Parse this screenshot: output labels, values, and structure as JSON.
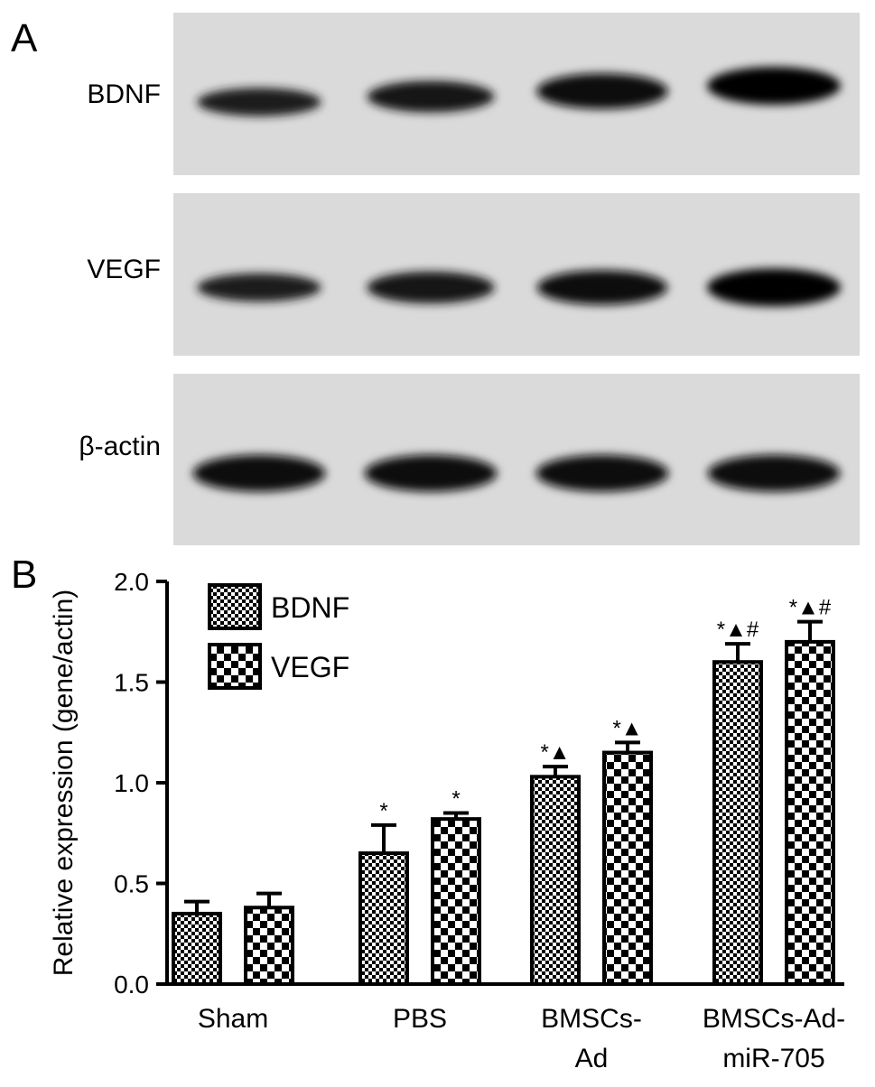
{
  "panels": {
    "a": "A",
    "b": "B"
  },
  "blots": [
    {
      "label": "BDNF",
      "intensity": [
        0.55,
        0.7,
        0.9,
        1.0
      ]
    },
    {
      "label": "VEGF",
      "intensity": [
        0.55,
        0.72,
        0.85,
        1.0
      ]
    },
    {
      "label": "β-actin",
      "intensity": [
        0.95,
        0.95,
        0.95,
        0.95
      ]
    }
  ],
  "chart_data": {
    "type": "bar",
    "ylabel": "Relative expression (gene/actin)",
    "xlabel": "",
    "ylim": [
      0.0,
      2.0
    ],
    "yticks": [
      "0.0",
      "0.5",
      "1.0",
      "1.5",
      "2.0"
    ],
    "categories": [
      [
        "Sham"
      ],
      [
        "PBS"
      ],
      [
        "BMSCs-",
        "Ad"
      ],
      [
        "BMSCs-Ad-",
        "miR-705"
      ]
    ],
    "series": [
      {
        "name": "BDNF",
        "values": [
          0.35,
          0.65,
          1.03,
          1.6
        ],
        "errors": [
          0.06,
          0.14,
          0.05,
          0.09
        ],
        "annotations": [
          "",
          "*",
          "*▲",
          "*▲#"
        ]
      },
      {
        "name": "VEGF",
        "values": [
          0.38,
          0.82,
          1.15,
          1.7
        ],
        "errors": [
          0.07,
          0.03,
          0.05,
          0.1
        ],
        "annotations": [
          "",
          "*",
          "*▲",
          "*▲#"
        ]
      }
    ],
    "legend_position": "top-left",
    "grid": false
  }
}
